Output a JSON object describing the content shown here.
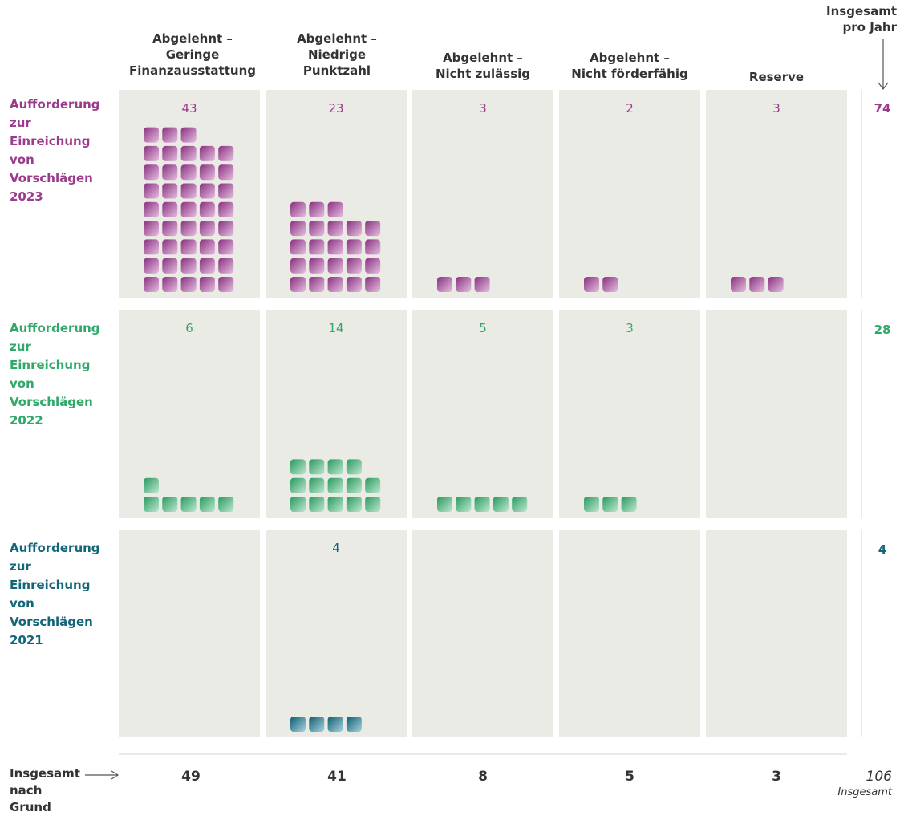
{
  "chart_data": {
    "type": "table",
    "columns": [
      "Abgelehnt –\nGeringe\nFinanzausstattung",
      "Abgelehnt –\nNiedrige\nPunktzahl",
      "Abgelehnt –\nNicht zulässig",
      "Abgelehnt –\nNicht förderfähig",
      "Reserve"
    ],
    "rows": [
      {
        "label": "Aufforderung\nzur\nEinreichung\nvon\nVorschlägen\n2023",
        "color": "#9b3b8c",
        "counts": [
          43,
          23,
          3,
          2,
          3
        ],
        "count_labels": [
          "43",
          "23",
          "3",
          "2",
          "3"
        ],
        "total": "74"
      },
      {
        "label": "Aufforderung\nzur\nEinreichung\nvon\nVorschlägen\n2022",
        "color": "#2fa86a",
        "counts": [
          6,
          14,
          5,
          3,
          0
        ],
        "count_labels": [
          "6",
          "14",
          "5",
          "3",
          ""
        ],
        "total": "28"
      },
      {
        "label": "Aufforderung\nzur\nEinreichung\nvon\nVorschlägen\n2021",
        "color": "#13657a",
        "counts": [
          0,
          4,
          0,
          0,
          0
        ],
        "count_labels": [
          "",
          "4",
          "",
          "",
          ""
        ],
        "total": "4"
      }
    ],
    "column_totals": [
      "49",
      "41",
      "8",
      "5",
      "3"
    ],
    "row_total_header": "Insgesamt\npro Jahr",
    "column_total_label": "Insgesamt\nnach\nGrund",
    "grand_total": "106",
    "grand_total_label": "Insgesamt"
  }
}
